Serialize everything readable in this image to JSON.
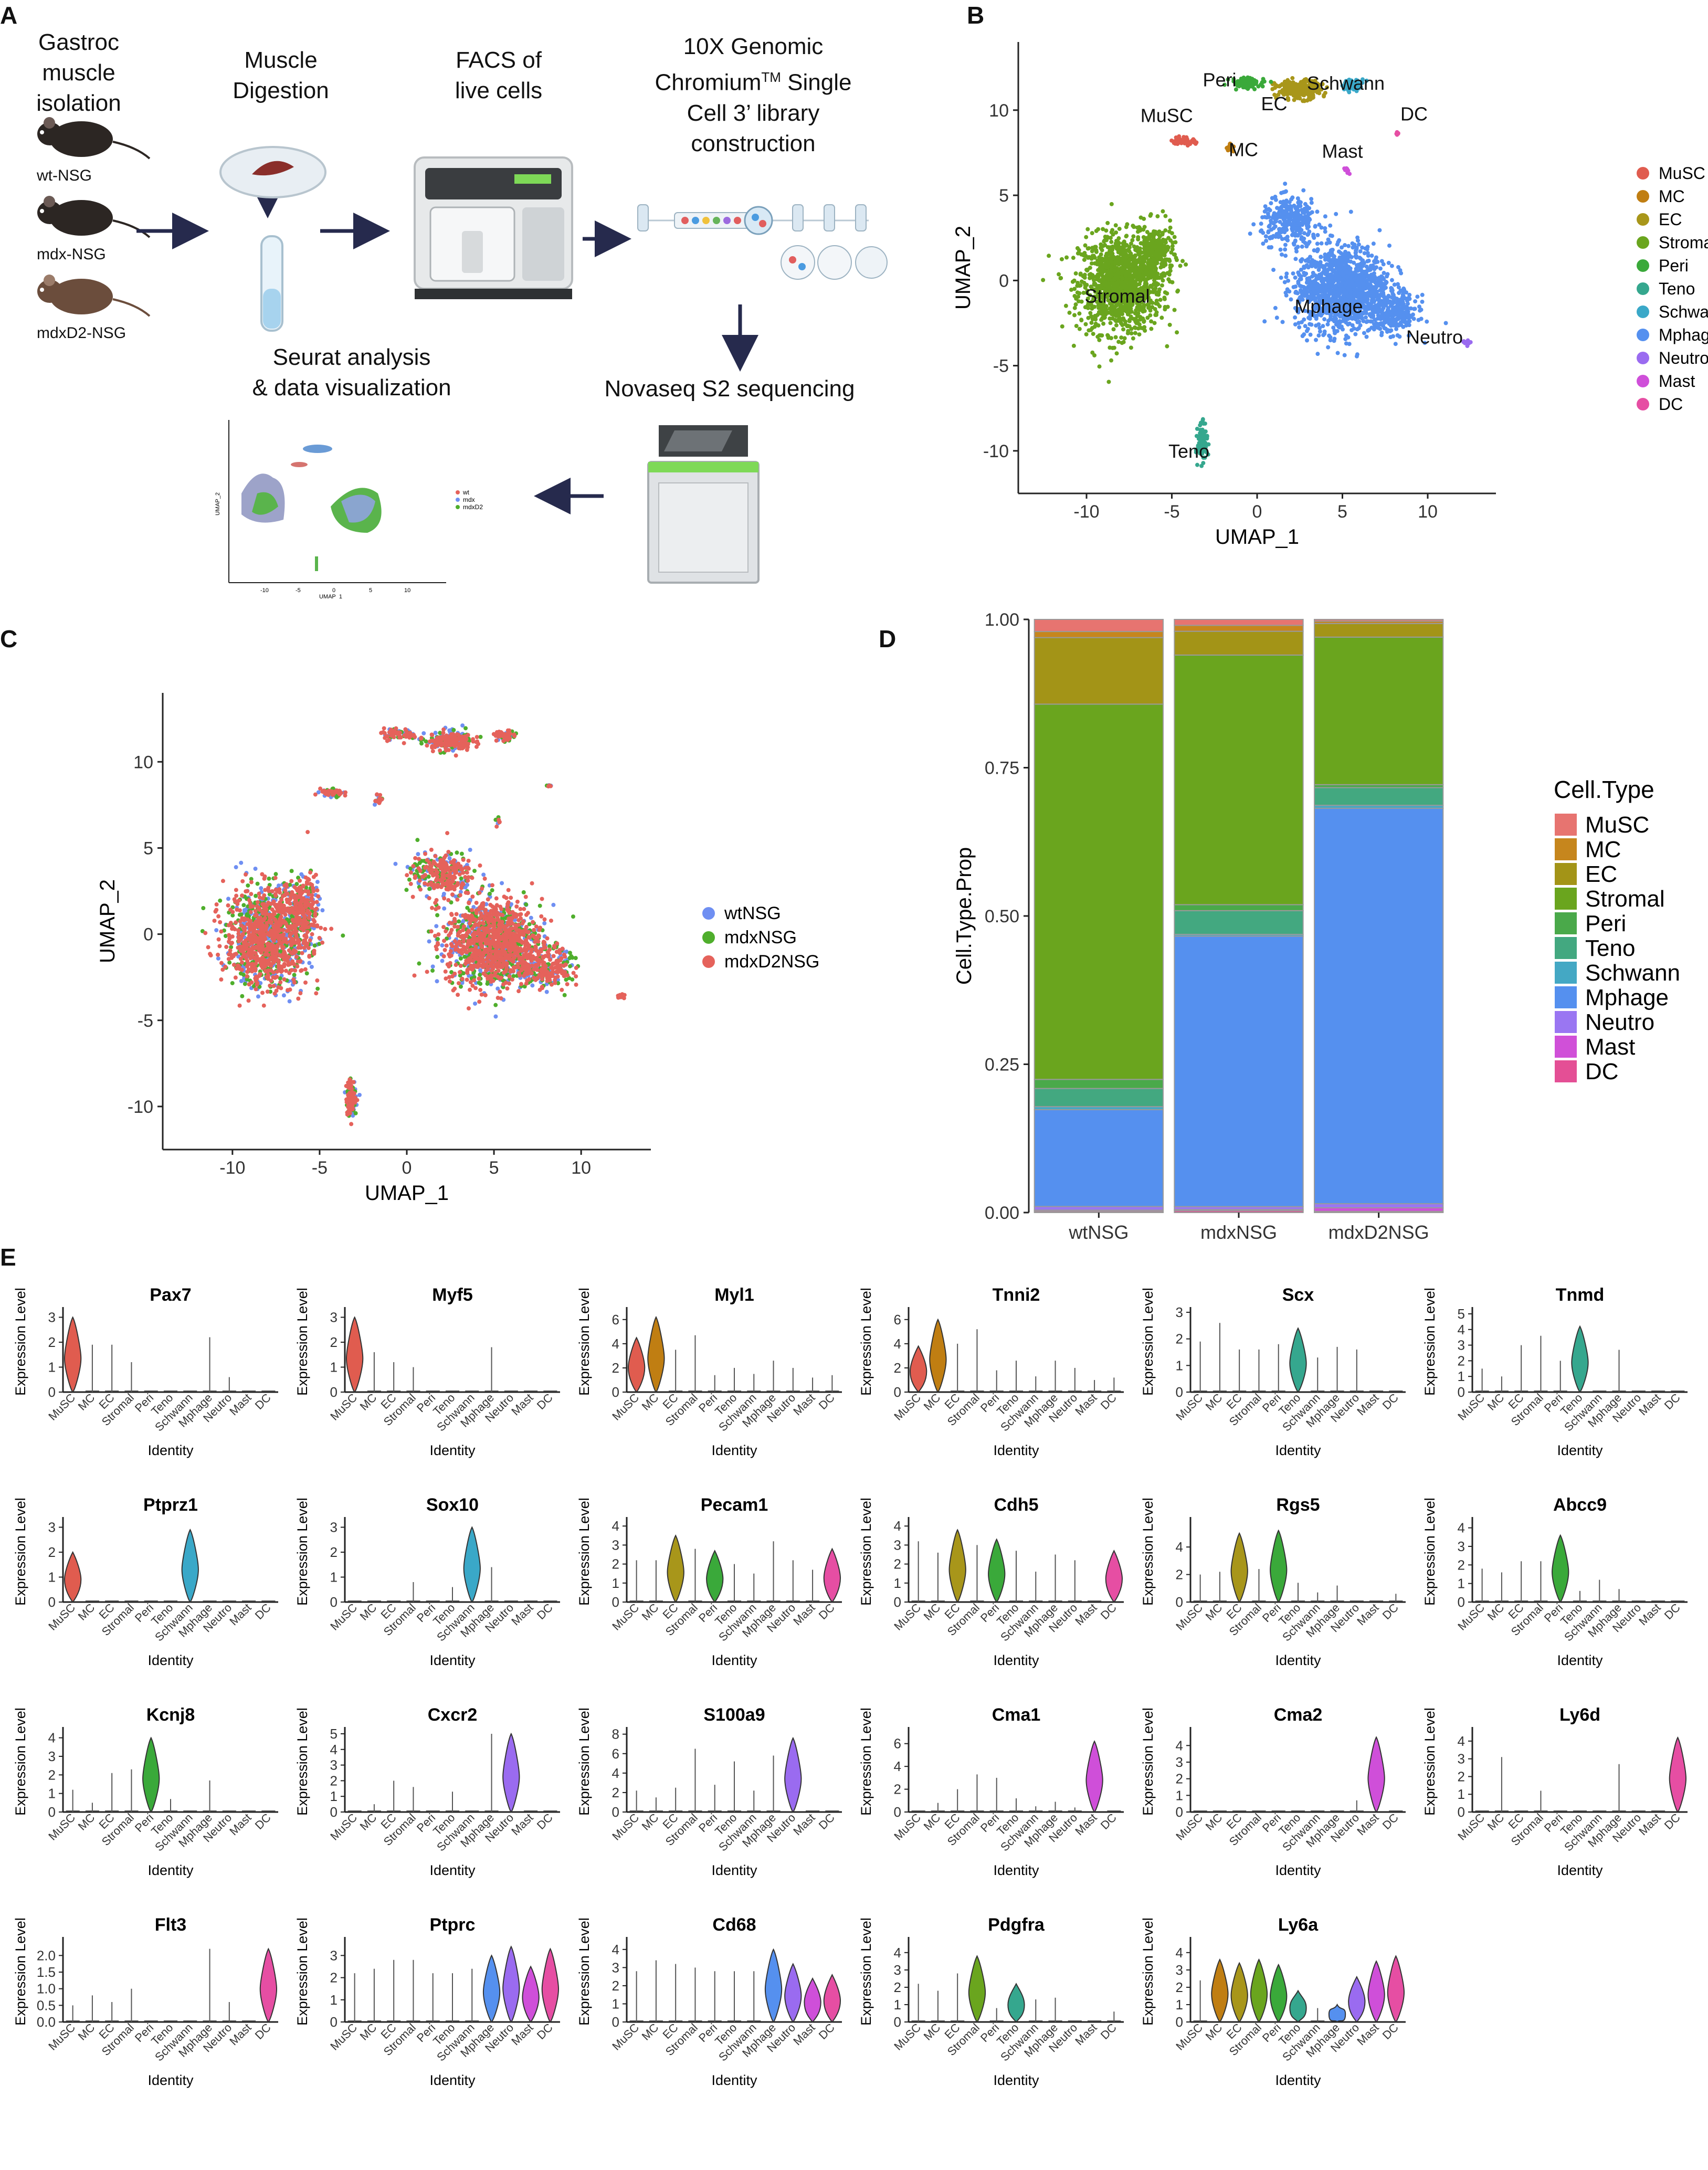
{
  "figure": {
    "panel_labels": {
      "a": "A",
      "b": "B",
      "c": "C",
      "d": "D",
      "e": "E"
    }
  },
  "panelA": {
    "step1": {
      "lines": [
        "Gastroc",
        "muscle",
        "isolation"
      ]
    },
    "mice": [
      "wt-NSG",
      "mdx-NSG",
      "mdxD2-NSG"
    ],
    "step2": {
      "lines": [
        "Muscle",
        "Digestion"
      ]
    },
    "step3": {
      "lines": [
        "FACS of",
        "live cells"
      ]
    },
    "step4": {
      "line1a": "10X Genomic",
      "line2a": "Chromium",
      "line2sup": "TM",
      "line2b": " Single",
      "line3": "Cell 3’ library",
      "line4": "construction"
    },
    "step5": "Novaseq S2 sequencing",
    "step6": {
      "lines": [
        "Seurat analysis",
        "& data visualization"
      ]
    },
    "thumb": {
      "xlabel": "UMAP_1",
      "ylabel": "UMAP_2",
      "legend": [
        "wt",
        "mdx",
        "mdxD2"
      ],
      "ticks": [
        "-10",
        "-5",
        "0",
        "5",
        "10"
      ]
    }
  },
  "chart_data": [
    {
      "panel": "B",
      "type": "scatter",
      "xlabel": "UMAP_1",
      "ylabel": "UMAP_2",
      "xlim": [
        -14,
        14
      ],
      "ylim": [
        -12.5,
        14
      ],
      "xticks": [
        -10,
        -5,
        0,
        5,
        10
      ],
      "yticks": [
        -10,
        -5,
        0,
        5,
        10
      ],
      "legend": [
        {
          "name": "MuSC",
          "color": "#e05c4f"
        },
        {
          "name": "MC",
          "color": "#c07e12"
        },
        {
          "name": "EC",
          "color": "#a8961a"
        },
        {
          "name": "Stromal",
          "color": "#6aa51e"
        },
        {
          "name": "Peri",
          "color": "#3aa93a"
        },
        {
          "name": "Teno",
          "color": "#35a78e"
        },
        {
          "name": "Schwann",
          "color": "#3aa8c8"
        },
        {
          "name": "Mphage",
          "color": "#5590ef"
        },
        {
          "name": "Neutro",
          "color": "#9a6bf0"
        },
        {
          "name": "Mast",
          "color": "#cf4fd9"
        },
        {
          "name": "DC",
          "color": "#e64ea3"
        }
      ],
      "cluster_labels": [
        {
          "name": "Peri",
          "x": -2.2,
          "y": 11.4
        },
        {
          "name": "Schwann",
          "x": 5.2,
          "y": 11.2
        },
        {
          "name": "EC",
          "x": 1.0,
          "y": 10.0
        },
        {
          "name": "DC",
          "x": 9.2,
          "y": 9.4
        },
        {
          "name": "MuSC",
          "x": -5.3,
          "y": 9.3
        },
        {
          "name": "MC",
          "x": -0.8,
          "y": 7.3
        },
        {
          "name": "Mast",
          "x": 5.0,
          "y": 7.2
        },
        {
          "name": "Stromal",
          "x": -8.2,
          "y": -1.3
        },
        {
          "name": "Mphage",
          "x": 4.2,
          "y": -1.9
        },
        {
          "name": "Neutro",
          "x": 10.4,
          "y": -3.7
        },
        {
          "name": "Teno",
          "x": -4.0,
          "y": -10.4
        }
      ]
    },
    {
      "panel": "C",
      "type": "scatter",
      "xlabel": "UMAP_1",
      "ylabel": "UMAP_2",
      "xlim": [
        -14,
        14
      ],
      "ylim": [
        -12.5,
        14
      ],
      "xticks": [
        -10,
        -5,
        0,
        5,
        10
      ],
      "yticks": [
        -10,
        -5,
        0,
        5,
        10
      ],
      "series": [
        {
          "name": "wtNSG",
          "color": "#6f8ff2"
        },
        {
          "name": "mdxNSG",
          "color": "#4fae2c"
        },
        {
          "name": "mdxD2NSG",
          "color": "#e5625b"
        }
      ]
    },
    {
      "panel": "D",
      "type": "bar",
      "stacked": true,
      "xlabel": "",
      "ylabel": "Cell.Type.Prop",
      "ylim": [
        0,
        1
      ],
      "yticks": [
        "0.00",
        "0.25",
        "0.50",
        "0.75",
        "1.00"
      ],
      "legend_title": "Cell.Type",
      "categories": [
        "wtNSG",
        "mdxNSG",
        "mdxD2NSG"
      ],
      "series": [
        {
          "name": "MuSC",
          "color": "#e77470",
          "values": [
            0.02,
            0.01,
            0.003
          ]
        },
        {
          "name": "MC",
          "color": "#c6861d",
          "values": [
            0.01,
            0.01,
            0.004
          ]
        },
        {
          "name": "EC",
          "color": "#a39417",
          "values": [
            0.11,
            0.04,
            0.023
          ]
        },
        {
          "name": "Stromal",
          "color": "#6aa51e",
          "values": [
            0.62,
            0.42,
            0.25
          ]
        },
        {
          "name": "Peri",
          "color": "#4aa94a",
          "values": [
            0.015,
            0.01,
            0.005
          ]
        },
        {
          "name": "Teno",
          "color": "#43a880",
          "values": [
            0.03,
            0.04,
            0.03
          ]
        },
        {
          "name": "Schwann",
          "color": "#44a8c4",
          "values": [
            0.005,
            0.003,
            0.005
          ]
        },
        {
          "name": "Mphage",
          "color": "#5590ef",
          "values": [
            0.16,
            0.455,
            0.67
          ]
        },
        {
          "name": "Neutro",
          "color": "#9a76f2",
          "values": [
            0.006,
            0.005,
            0.007
          ]
        },
        {
          "name": "Mast",
          "color": "#d050d8",
          "values": [
            0.002,
            0.002,
            0.006
          ]
        },
        {
          "name": "DC",
          "color": "#e44f95",
          "values": [
            0.002,
            0.003,
            0.002
          ]
        }
      ]
    },
    {
      "panel": "E",
      "type": "violin",
      "xlabel": "Identity",
      "ylabel": "Expression Level",
      "categories": [
        "MuSC",
        "MC",
        "EC",
        "Stromal",
        "Peri",
        "Teno",
        "Schwann",
        "Mphage",
        "Neutro",
        "Mast",
        "DC"
      ],
      "colors": [
        "#e05c4f",
        "#c07e12",
        "#a8961a",
        "#6aa51e",
        "#3aa93a",
        "#35a78e",
        "#3aa8c8",
        "#5590ef",
        "#9a6bf0",
        "#cf4fd9",
        "#e64ea3"
      ],
      "genes": [
        {
          "gene": "Pax7",
          "yticks": [
            "0",
            "1",
            "2",
            "3"
          ],
          "ymax": 3.2,
          "max": [
            3.0,
            1.9,
            1.9,
            1.2,
            0,
            0,
            0,
            2.2,
            0.6,
            0,
            0
          ],
          "violins": [
            0
          ]
        },
        {
          "gene": "Myf5",
          "yticks": [
            "0",
            "1",
            "2",
            "3"
          ],
          "ymax": 3.2,
          "max": [
            3.0,
            1.6,
            1.2,
            1.0,
            0,
            0,
            0,
            1.8,
            0,
            0,
            0
          ],
          "violins": [
            0
          ]
        },
        {
          "gene": "Myl1",
          "yticks": [
            "0",
            "2",
            "4",
            "6"
          ],
          "ymax": 6.6,
          "max": [
            4.5,
            6.2,
            3.5,
            4.7,
            1.4,
            2.0,
            1.5,
            2.6,
            2.0,
            1.2,
            1.4
          ],
          "violins": [
            0,
            1
          ]
        },
        {
          "gene": "Tnni2",
          "yticks": [
            "0",
            "2",
            "4",
            "6"
          ],
          "ymax": 6.6,
          "max": [
            3.8,
            6.0,
            4.0,
            5.2,
            1.8,
            2.6,
            1.3,
            2.6,
            2.0,
            1.0,
            1.2
          ],
          "violins": [
            0,
            1
          ]
        },
        {
          "gene": "Scx",
          "yticks": [
            "0",
            "1",
            "2",
            "3"
          ],
          "ymax": 3.0,
          "max": [
            1.9,
            2.6,
            1.6,
            1.6,
            1.8,
            2.4,
            1.3,
            1.7,
            1.6,
            0,
            0
          ],
          "violins": [
            5
          ]
        },
        {
          "gene": "Tnmd",
          "yticks": [
            "0",
            "1",
            "2",
            "3",
            "4",
            "5"
          ],
          "ymax": 5.1,
          "max": [
            1.5,
            1.0,
            3.0,
            3.6,
            2.0,
            4.2,
            0,
            2.7,
            0,
            0,
            0
          ],
          "violins": [
            5
          ]
        },
        {
          "gene": "Ptprz1",
          "yticks": [
            "0",
            "1",
            "2",
            "3"
          ],
          "ymax": 3.2,
          "max": [
            2.0,
            0,
            0,
            0,
            0,
            0,
            2.9,
            0,
            0,
            0,
            0
          ],
          "violins": [
            0,
            6
          ]
        },
        {
          "gene": "Sox10",
          "yticks": [
            "0",
            "1",
            "2",
            "3"
          ],
          "ymax": 3.2,
          "max": [
            0,
            0,
            0,
            0.8,
            0,
            0.6,
            3.0,
            1.4,
            0,
            0,
            0
          ],
          "violins": [
            6
          ]
        },
        {
          "gene": "Pecam1",
          "yticks": [
            "0",
            "1",
            "2",
            "3",
            "4"
          ],
          "ymax": 4.2,
          "max": [
            2.2,
            2.2,
            3.5,
            2.8,
            2.7,
            2.0,
            1.5,
            3.2,
            2.2,
            1.7,
            2.8
          ],
          "violins": [
            2,
            4,
            10
          ]
        },
        {
          "gene": "Cdh5",
          "yticks": [
            "0",
            "1",
            "2",
            "3",
            "4"
          ],
          "ymax": 4.2,
          "max": [
            3.2,
            2.6,
            3.8,
            3.0,
            3.3,
            2.7,
            1.6,
            2.5,
            2.2,
            0,
            2.7
          ],
          "violins": [
            2,
            4,
            10
          ]
        },
        {
          "gene": "Rgs5",
          "yticks": [
            "0",
            "2",
            "4"
          ],
          "ymax": 5.8,
          "max": [
            2.0,
            2.2,
            5.0,
            2.4,
            5.2,
            1.4,
            0.7,
            1.2,
            0,
            0,
            0.6
          ],
          "violins": [
            2,
            4
          ]
        },
        {
          "gene": "Abcc9",
          "yticks": [
            "0",
            "1",
            "2",
            "3",
            "4"
          ],
          "ymax": 4.3,
          "max": [
            1.8,
            1.6,
            2.2,
            2.2,
            3.6,
            0.6,
            1.2,
            0.7,
            0,
            0,
            0
          ],
          "violins": [
            4
          ]
        },
        {
          "gene": "Kcnj8",
          "yticks": [
            "0",
            "1",
            "2",
            "3",
            "4"
          ],
          "ymax": 4.3,
          "max": [
            1.2,
            0.5,
            2.1,
            2.3,
            4.0,
            0.7,
            0,
            1.7,
            0,
            0,
            0
          ],
          "violins": [
            4
          ]
        },
        {
          "gene": "Cxcr2",
          "yticks": [
            "0",
            "1",
            "2",
            "3",
            "4",
            "5"
          ],
          "ymax": 5.1,
          "max": [
            0,
            0.5,
            2.0,
            1.6,
            0,
            1.3,
            0,
            5.0,
            5.0,
            0,
            0
          ],
          "violins": [
            8
          ]
        },
        {
          "gene": "S100a9",
          "yticks": [
            "0",
            "2",
            "4",
            "6",
            "8"
          ],
          "ymax": 8.2,
          "max": [
            2.2,
            1.5,
            2.5,
            6.5,
            2.8,
            5.2,
            2.2,
            5.8,
            7.6,
            0,
            0
          ],
          "violins": [
            8
          ]
        },
        {
          "gene": "Cma1",
          "yticks": [
            "0",
            "2",
            "4",
            "6"
          ],
          "ymax": 7.0,
          "max": [
            0,
            0.8,
            2.0,
            3.3,
            3.0,
            1.2,
            0.5,
            0.9,
            0.4,
            6.2,
            0
          ],
          "violins": [
            9
          ]
        },
        {
          "gene": "Cma2",
          "yticks": [
            "0",
            "1",
            "2",
            "3",
            "4"
          ],
          "ymax": 4.8,
          "max": [
            0,
            0,
            0,
            0,
            0,
            0,
            0,
            0,
            0.7,
            4.5,
            0
          ],
          "violins": [
            9
          ]
        },
        {
          "gene": "Ly6d",
          "yticks": [
            "0",
            "1",
            "2",
            "3",
            "4"
          ],
          "ymax": 4.5,
          "max": [
            0,
            3.1,
            0,
            1.2,
            0,
            0,
            0,
            2.7,
            0,
            0,
            4.2
          ],
          "violins": [
            10
          ]
        },
        {
          "gene": "Flt3",
          "yticks": [
            "0.0",
            "0.5",
            "1.0",
            "1.5",
            "2.0"
          ],
          "ymax": 2.4,
          "max": [
            0.5,
            0.8,
            0.6,
            1.0,
            0,
            0,
            0,
            2.2,
            0.6,
            0,
            2.2
          ],
          "violins": [
            10
          ]
        },
        {
          "gene": "Ptprc",
          "yticks": [
            "0",
            "1",
            "2",
            "3"
          ],
          "ymax": 3.6,
          "max": [
            2.2,
            2.4,
            2.8,
            2.8,
            2.2,
            2.2,
            2.4,
            3.0,
            3.4,
            2.5,
            3.3
          ],
          "violins": [
            7,
            8,
            9,
            10
          ]
        },
        {
          "gene": "Cd68",
          "yticks": [
            "0",
            "1",
            "2",
            "3",
            "4"
          ],
          "ymax": 4.4,
          "max": [
            2.8,
            3.4,
            3.2,
            3.0,
            2.8,
            2.8,
            2.8,
            4.0,
            3.2,
            2.4,
            2.6
          ],
          "violins": [
            7,
            8,
            9,
            10
          ]
        },
        {
          "gene": "Pdgfra",
          "yticks": [
            "0",
            "1",
            "2",
            "3",
            "4"
          ],
          "ymax": 4.6,
          "max": [
            2.2,
            1.8,
            2.8,
            3.8,
            0.8,
            2.2,
            1.3,
            1.4,
            0,
            0,
            0.6
          ],
          "violins": [
            3,
            5
          ]
        },
        {
          "gene": "Ly6a",
          "yticks": [
            "0",
            "1",
            "2",
            "3",
            "4"
          ],
          "ymax": 4.6,
          "max": [
            2.4,
            3.6,
            3.4,
            3.6,
            3.3,
            1.8,
            0.8,
            1.0,
            2.6,
            3.5,
            3.8
          ],
          "violins": [
            1,
            2,
            3,
            4,
            5,
            7,
            8,
            9,
            10
          ]
        }
      ]
    }
  ]
}
